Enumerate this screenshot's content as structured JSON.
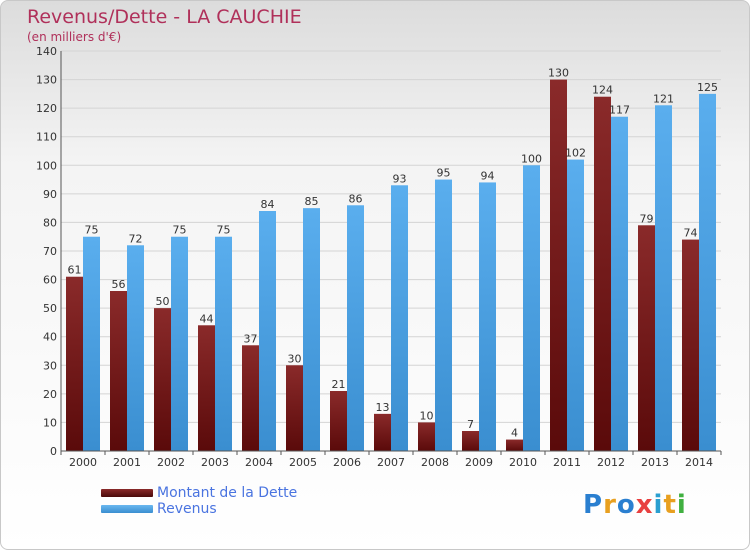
{
  "header": {
    "title": "Revenus/Dette - LA CAUCHIE",
    "subtitle": "(en milliers d'€)"
  },
  "legend": {
    "items": [
      {
        "label": "Montant de la Dette",
        "color": "#6b1a1a"
      },
      {
        "label": "Revenus",
        "color": "#4a9ee0"
      }
    ]
  },
  "logo": {
    "text": "Proxiti",
    "letters": [
      {
        "ch": "P",
        "color": "#2a7fd0"
      },
      {
        "ch": "r",
        "color": "#e8a020"
      },
      {
        "ch": "o",
        "color": "#2a7fd0"
      },
      {
        "ch": "x",
        "color": "#e84040"
      },
      {
        "ch": "i",
        "color": "#2a9fd0"
      },
      {
        "ch": "t",
        "color": "#e8a020"
      },
      {
        "ch": "i",
        "color": "#40b040"
      }
    ]
  },
  "chart_data": {
    "type": "bar",
    "title": "Revenus/Dette - LA CAUCHIE",
    "subtitle": "(en milliers d'€)",
    "xlabel": "",
    "ylabel": "",
    "ylim": [
      0,
      140
    ],
    "yticks": [
      0,
      10,
      20,
      30,
      40,
      50,
      60,
      70,
      80,
      90,
      100,
      110,
      120,
      130,
      140
    ],
    "grid": true,
    "legend_position": "bottom-left",
    "categories": [
      "2000",
      "2001",
      "2002",
      "2003",
      "2004",
      "2005",
      "2006",
      "2007",
      "2008",
      "2009",
      "2010",
      "2011",
      "2012",
      "2013",
      "2014"
    ],
    "series": [
      {
        "name": "Montant de la Dette",
        "color": "#7a1e1e",
        "values": [
          61,
          56,
          50,
          44,
          37,
          30,
          21,
          13,
          10,
          7,
          4,
          130,
          124,
          79,
          74
        ]
      },
      {
        "name": "Revenus",
        "color": "#4a9ee0",
        "values": [
          75,
          72,
          75,
          75,
          84,
          85,
          86,
          93,
          95,
          94,
          100,
          102,
          117,
          121,
          125
        ]
      }
    ]
  }
}
